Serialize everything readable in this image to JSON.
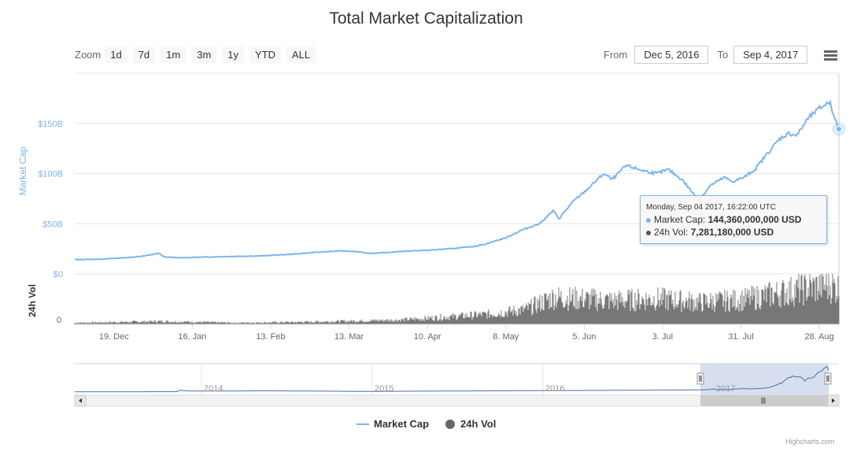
{
  "title": "Total Market Capitalization",
  "toolbar": {
    "zoom_label": "Zoom",
    "zoom_buttons": [
      "1d",
      "7d",
      "1m",
      "3m",
      "1y",
      "YTD",
      "ALL"
    ],
    "from_label": "From",
    "from_value": "Dec 5, 2016",
    "to_label": "To",
    "to_value": "Sep 4, 2017",
    "menu_icon": "hamburger-menu-icon"
  },
  "tooltip": {
    "header": "Monday, Sep 04 2017, 16:22:00 UTC",
    "mc_label": "Market Cap: ",
    "mc_value": "144,360,000,000 USD",
    "vol_label": "24h Vol: ",
    "vol_value": "7,281,180,000 USD"
  },
  "legend": {
    "market_cap": "Market Cap",
    "vol": "24h Vol"
  },
  "credits": "Highcharts.com",
  "colors": {
    "market_cap": "#7cb5ec",
    "volume": "#777777",
    "navigator_fill": "#ccd6eb",
    "navigator_line": "#4572a7"
  },
  "chart_data": {
    "type": "line",
    "title": "Total Market Capitalization",
    "ylabel": "Market Cap",
    "ylabel_volume": "24h Vol",
    "ylim": [
      0,
      200
    ],
    "y_unit": "B USD",
    "y_ticks": [
      0,
      50,
      100,
      150
    ],
    "y_tick_labels": [
      "$0",
      "$50B",
      "$100B",
      "$150B"
    ],
    "vol_tick_labels": [
      "0"
    ],
    "xlim": [
      "2016-12-05",
      "2017-09-04"
    ],
    "x_tick_labels": [
      "19. Dec",
      "16. Jan",
      "13. Feb",
      "13. Mar",
      "10. Apr",
      "8. May",
      "5. Jun",
      "3. Jul",
      "31. Jul",
      "28. Aug"
    ],
    "x_tick_dates": [
      "2016-12-19",
      "2017-01-16",
      "2017-02-13",
      "2017-03-13",
      "2017-04-10",
      "2017-05-08",
      "2017-06-05",
      "2017-07-03",
      "2017-07-31",
      "2017-08-28"
    ],
    "series": [
      {
        "name": "Market Cap",
        "points": [
          [
            "2016-12-05",
            14.2
          ],
          [
            "2016-12-15",
            14.8
          ],
          [
            "2016-12-25",
            16.5
          ],
          [
            "2016-12-30",
            18
          ],
          [
            "2017-01-04",
            20.5
          ],
          [
            "2017-01-06",
            17
          ],
          [
            "2017-01-11",
            16
          ],
          [
            "2017-01-20",
            16.8
          ],
          [
            "2017-02-01",
            17.5
          ],
          [
            "2017-02-10",
            18
          ],
          [
            "2017-02-20",
            19.5
          ],
          [
            "2017-03-01",
            21.5
          ],
          [
            "2017-03-10",
            23
          ],
          [
            "2017-03-17",
            22
          ],
          [
            "2017-03-20",
            20.5
          ],
          [
            "2017-03-25",
            21
          ],
          [
            "2017-04-01",
            22.5
          ],
          [
            "2017-04-10",
            23.5
          ],
          [
            "2017-04-20",
            25.5
          ],
          [
            "2017-04-27",
            27.5
          ],
          [
            "2017-05-01",
            30
          ],
          [
            "2017-05-08",
            36
          ],
          [
            "2017-05-14",
            44
          ],
          [
            "2017-05-20",
            50
          ],
          [
            "2017-05-25",
            63
          ],
          [
            "2017-05-27",
            55
          ],
          [
            "2017-06-01",
            72
          ],
          [
            "2017-06-06",
            84
          ],
          [
            "2017-06-12",
            100
          ],
          [
            "2017-06-15",
            94
          ],
          [
            "2017-06-20",
            108
          ],
          [
            "2017-06-26",
            103
          ],
          [
            "2017-07-01",
            100
          ],
          [
            "2017-07-05",
            104
          ],
          [
            "2017-07-10",
            94
          ],
          [
            "2017-07-16",
            73
          ],
          [
            "2017-07-20",
            88
          ],
          [
            "2017-07-25",
            96
          ],
          [
            "2017-07-28",
            92
          ],
          [
            "2017-08-01",
            96
          ],
          [
            "2017-08-05",
            104
          ],
          [
            "2017-08-10",
            122
          ],
          [
            "2017-08-14",
            135
          ],
          [
            "2017-08-17",
            140
          ],
          [
            "2017-08-20",
            138
          ],
          [
            "2017-08-24",
            155
          ],
          [
            "2017-08-28",
            165
          ],
          [
            "2017-09-01",
            172
          ],
          [
            "2017-09-02",
            158
          ],
          [
            "2017-09-04",
            144.36
          ]
        ]
      },
      {
        "name": "24h Vol",
        "unit": "B USD",
        "points": [
          [
            "2016-12-05",
            0.3
          ],
          [
            "2017-01-05",
            0.6
          ],
          [
            "2017-02-01",
            0.3
          ],
          [
            "2017-03-01",
            0.5
          ],
          [
            "2017-04-01",
            0.9
          ],
          [
            "2017-05-01",
            2.0
          ],
          [
            "2017-05-15",
            3.0
          ],
          [
            "2017-05-25",
            5.5
          ],
          [
            "2017-06-15",
            4.8
          ],
          [
            "2017-07-01",
            5.2
          ],
          [
            "2017-07-16",
            4.5
          ],
          [
            "2017-08-01",
            5.0
          ],
          [
            "2017-08-15",
            6.5
          ],
          [
            "2017-08-25",
            7.5
          ],
          [
            "2017-09-01",
            8.0
          ],
          [
            "2017-09-04",
            7.28
          ]
        ]
      }
    ],
    "volume_ylim": [
      0,
      9
    ],
    "navigator": {
      "labels": [
        "2014",
        "2015",
        "2016",
        "2017"
      ],
      "selected_range": [
        "2016-12-05",
        "2017-09-04"
      ]
    },
    "grid": true,
    "legend_position": "bottom"
  }
}
